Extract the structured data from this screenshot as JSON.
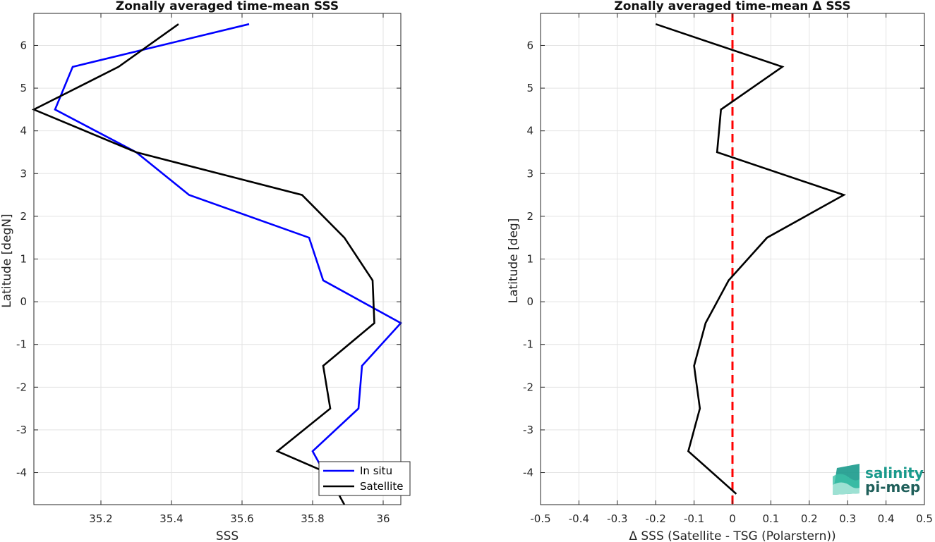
{
  "chart_data": [
    {
      "type": "line",
      "title": "Zonally averaged time-mean SSS",
      "xlabel": "SSS",
      "ylabel": "Latitude [degN]",
      "xlim": [
        35.01,
        36.05
      ],
      "ylim": [
        -4.75,
        6.75
      ],
      "xticks": [
        35.2,
        35.4,
        35.6,
        35.8,
        36
      ],
      "xtick_labels": [
        "35.2",
        "35.4",
        "35.6",
        "35.8",
        "36"
      ],
      "yticks": [
        -4,
        -3,
        -2,
        -1,
        0,
        1,
        2,
        3,
        4,
        5,
        6
      ],
      "ytick_labels": [
        "-4",
        "-3",
        "-2",
        "-1",
        "0",
        "1",
        "2",
        "3",
        "4",
        "5",
        "6"
      ],
      "grid": true,
      "legend_position": "bottom-right",
      "series": [
        {
          "name": "In situ",
          "color": "#0000ff",
          "x": [
            35.62,
            35.12,
            35.07,
            35.3,
            35.45,
            35.79,
            35.83,
            36.05,
            35.94,
            35.93,
            35.8,
            35.82
          ],
          "y": [
            6.5,
            5.5,
            4.5,
            3.5,
            2.5,
            1.5,
            0.5,
            -0.5,
            -1.5,
            -2.5,
            -3.5,
            -3.8
          ]
        },
        {
          "name": "Satellite",
          "color": "#000000",
          "x": [
            35.42,
            35.25,
            35.01,
            35.3,
            35.77,
            35.89,
            35.97,
            35.975,
            35.83,
            35.85,
            35.7,
            35.84,
            35.89
          ],
          "y": [
            6.5,
            5.5,
            4.5,
            3.5,
            2.5,
            1.5,
            0.5,
            -0.5,
            -1.5,
            -2.5,
            -3.5,
            -4.0,
            -4.75
          ]
        }
      ]
    },
    {
      "type": "line",
      "title": "Zonally averaged time-mean Δ SSS",
      "xlabel": "Δ SSS (Satellite - TSG (Polarstern))",
      "ylabel": "Latitude [deg]",
      "xlim": [
        -0.5,
        0.5
      ],
      "ylim": [
        -4.75,
        6.75
      ],
      "xticks": [
        -0.5,
        -0.4,
        -0.3,
        -0.2,
        -0.1,
        0,
        0.1,
        0.2,
        0.3,
        0.4,
        0.5
      ],
      "xtick_labels": [
        "-0.5",
        "-0.4",
        "-0.3",
        "-0.2",
        "-0.1",
        "0",
        "0.1",
        "0.2",
        "0.3",
        "0.4",
        "0.5"
      ],
      "yticks": [
        -4,
        -3,
        -2,
        -1,
        0,
        1,
        2,
        3,
        4,
        5,
        6
      ],
      "ytick_labels": [
        "-4",
        "-3",
        "-2",
        "-1",
        "0",
        "1",
        "2",
        "3",
        "4",
        "5",
        "6"
      ],
      "grid": true,
      "reference_line": {
        "x": 0,
        "color": "#ff0000",
        "style": "dashed"
      },
      "series": [
        {
          "color": "#000000",
          "x": [
            -0.2,
            0.13,
            -0.03,
            -0.04,
            0.29,
            0.09,
            -0.01,
            -0.07,
            -0.1,
            -0.085,
            -0.115,
            0.01
          ],
          "y": [
            6.5,
            5.5,
            4.5,
            3.5,
            2.5,
            1.5,
            0.5,
            -0.5,
            -1.5,
            -2.5,
            -3.5,
            -4.5
          ]
        }
      ]
    }
  ],
  "logo": {
    "line1": "salinity",
    "line2": "pi-mep"
  }
}
